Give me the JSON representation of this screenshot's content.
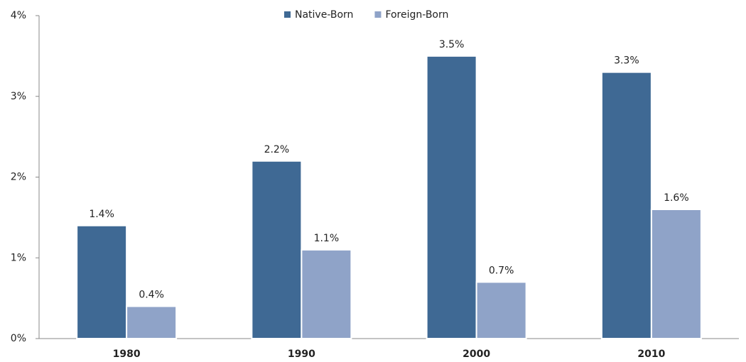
{
  "chart_data": {
    "type": "bar",
    "categories": [
      "1980",
      "1990",
      "2000",
      "2010"
    ],
    "series": [
      {
        "name": "Native-Born",
        "color": "#3f6994",
        "values": [
          1.4,
          2.2,
          3.5,
          3.3
        ],
        "value_labels": [
          "1.4%",
          "2.2%",
          "3.5%",
          "3.3%"
        ]
      },
      {
        "name": "Foreign-Born",
        "color": "#8fa3c8",
        "values": [
          0.4,
          1.1,
          0.7,
          1.6
        ],
        "value_labels": [
          "0.4%",
          "1.1%",
          "0.7%",
          "1.6%"
        ]
      }
    ],
    "ylim": [
      0,
      4
    ],
    "yticks": [
      {
        "value": 0,
        "label": "0%"
      },
      {
        "value": 1,
        "label": "1%"
      },
      {
        "value": 2,
        "label": "2%"
      },
      {
        "value": 3,
        "label": "3%"
      },
      {
        "value": 4,
        "label": "4%"
      }
    ],
    "grid": false,
    "legend": "top"
  }
}
